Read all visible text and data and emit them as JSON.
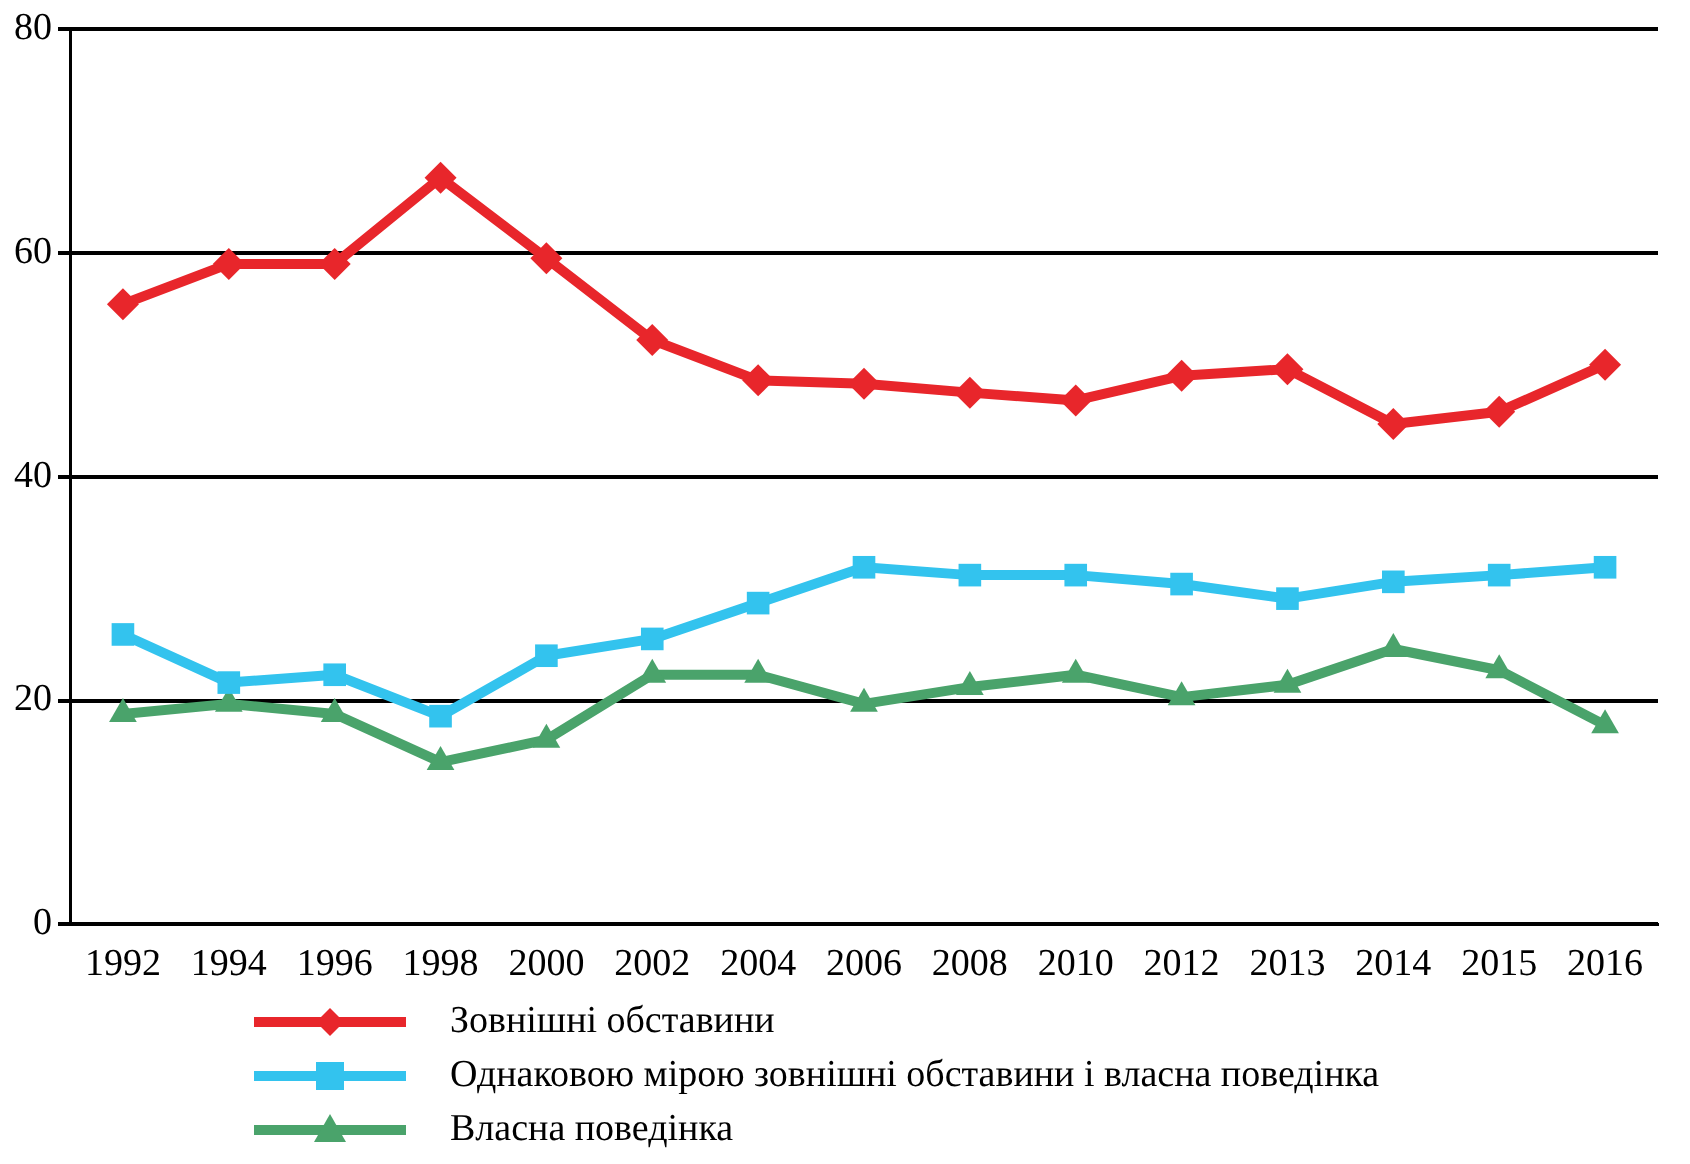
{
  "chart_data": {
    "type": "line",
    "categories": [
      "1992",
      "1994",
      "1996",
      "1998",
      "2000",
      "2002",
      "2004",
      "2006",
      "2008",
      "2010",
      "2012",
      "2013",
      "2014",
      "2015",
      "2016"
    ],
    "series": [
      {
        "name": "Зовнішні обставини",
        "color": "#e8262b",
        "marker": "diamond",
        "values": [
          55.4,
          59,
          59,
          66.7,
          59.5,
          52.2,
          48.6,
          48.3,
          47.5,
          46.8,
          49,
          49.6,
          44.7,
          45.8,
          50
        ]
      },
      {
        "name": "Однаковою мірою зовнішні обставини і власна поведінка",
        "color": "#33c3ee",
        "marker": "square",
        "values": [
          25.9,
          21.6,
          22.3,
          18.6,
          24,
          25.5,
          28.7,
          31.9,
          31.2,
          31.2,
          30.4,
          29.1,
          30.6,
          31.2,
          31.9
        ]
      },
      {
        "name": "Власна поведінка",
        "color": "#4aa36b",
        "marker": "triangle",
        "values": [
          18.8,
          19.7,
          18.8,
          14.5,
          16.5,
          22.3,
          22.3,
          19.7,
          21.2,
          22.3,
          20.3,
          21.4,
          24.6,
          22.7,
          17.8
        ]
      }
    ],
    "ylim": [
      0,
      80
    ],
    "yticks": [
      0,
      20,
      40,
      60,
      80
    ],
    "grid": "y",
    "legend": "bottom",
    "line_style": "solid"
  }
}
